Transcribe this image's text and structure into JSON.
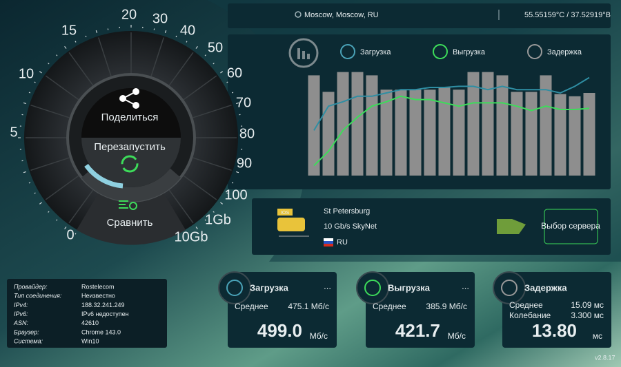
{
  "location": {
    "place": "Moscow, Moscow, RU",
    "coords": "55.55159°C / 37.52919°В"
  },
  "gauge": {
    "scale": [
      0,
      5,
      10,
      15,
      20,
      30,
      40,
      50,
      60,
      70,
      80,
      90,
      100,
      "1Gb",
      "10Gb"
    ],
    "share": "Поделиться",
    "restart": "Перезапустить",
    "compare": "Сравнить"
  },
  "graph": {
    "legend": [
      "Загрузка",
      "Выгрузка",
      "Задержка"
    ],
    "ylim": [
      0,
      100
    ],
    "bars": [
      91,
      76,
      94,
      94,
      91,
      78,
      78,
      78,
      78,
      80,
      78,
      94,
      94,
      91,
      76,
      76,
      91,
      74,
      72,
      75
    ],
    "download": [
      41,
      63,
      67,
      72,
      72,
      75,
      78,
      78,
      80,
      80,
      81,
      81,
      78,
      81,
      78,
      78,
      78,
      75,
      81,
      89
    ],
    "upload": [
      9,
      22,
      41,
      53,
      63,
      67,
      72,
      69,
      69,
      66,
      63,
      66,
      66,
      66,
      63,
      59,
      63,
      60,
      60,
      61
    ]
  },
  "server": {
    "badge": "IOS",
    "city": "St Petersburg",
    "provider": "10 Gb/s SkyNet",
    "country": "RU",
    "button": "Выбор сервера"
  },
  "info": [
    [
      "Провайдер:",
      "Rostelecom"
    ],
    [
      "Тип соединения:",
      "Неизвестно"
    ],
    [
      "IPv4:",
      "188.32.241.249"
    ],
    [
      "IPv6:",
      "IPv6 недоступен"
    ],
    [
      "ASN:",
      "42610"
    ],
    [
      "Браузер:",
      "Chrome 143.0"
    ],
    [
      "Система:",
      "Win10"
    ]
  ],
  "cards": [
    {
      "title": "Загрузка",
      "more": "...",
      "rows": [
        [
          "Среднее",
          "475.1 Мб/с"
        ]
      ],
      "value": "499.0",
      "unit": "Мб/с"
    },
    {
      "title": "Выгрузка",
      "more": "...",
      "rows": [
        [
          "Среднее",
          "385.9 Мб/с"
        ]
      ],
      "value": "421.7",
      "unit": "Мб/с"
    },
    {
      "title": "Задержка",
      "rows": [
        [
          "Среднее",
          "15.09 мс"
        ],
        [
          "Колебание",
          "3.300 мс"
        ]
      ],
      "value": "13.80",
      "unit": "мс"
    }
  ],
  "version": "v2.8.17"
}
